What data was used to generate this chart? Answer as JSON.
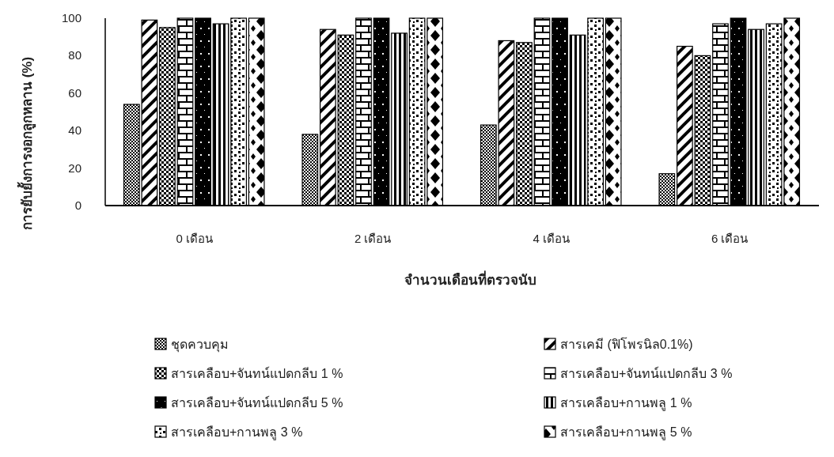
{
  "chart_data": {
    "type": "bar",
    "xlabel": "จำนวนเดือนที่ตรวจนับ",
    "ylabel": "การยับยั้งการงอกลูกหลาน (%)",
    "categories": [
      "0 เดือน",
      "2 เดือน",
      "4 เดือน",
      "6 เดือน"
    ],
    "ylim": [
      0,
      100
    ],
    "yticks": [
      0,
      20,
      40,
      60,
      80,
      100
    ],
    "grid": false,
    "legend": "bottom",
    "series": [
      {
        "name": "ชุดควบคุม",
        "color": "#000000",
        "values": [
          54,
          38,
          43,
          17
        ]
      },
      {
        "name": "สารเคมี (ฟิโพรนิล0.1%)",
        "color": "#000000",
        "values": [
          99,
          94,
          88,
          85
        ]
      },
      {
        "name": "สารเคลือบ+จันทน์แปดกลีบ 1 %",
        "color": "#000000",
        "values": [
          95,
          91,
          87,
          80
        ]
      },
      {
        "name": "สารเคลือบ+จันทน์แปดกลีบ 3 %",
        "color": "#000000",
        "values": [
          100,
          100,
          100,
          97
        ]
      },
      {
        "name": "สารเคลือบ+จันทน์แปดกลีบ 5 %",
        "color": "#000000",
        "values": [
          100,
          100,
          100,
          100
        ]
      },
      {
        "name": "สารเคลือบ+กานพลู 1 %",
        "color": "#000000",
        "values": [
          97,
          92,
          91,
          94
        ]
      },
      {
        "name": "สารเคลือบ+กานพลู 3 %",
        "color": "#000000",
        "values": [
          100,
          100,
          100,
          97
        ]
      },
      {
        "name": "สารเคลือบ+กานพลู 5 %",
        "color": "#000000",
        "values": [
          100,
          100,
          100,
          100
        ]
      }
    ]
  }
}
